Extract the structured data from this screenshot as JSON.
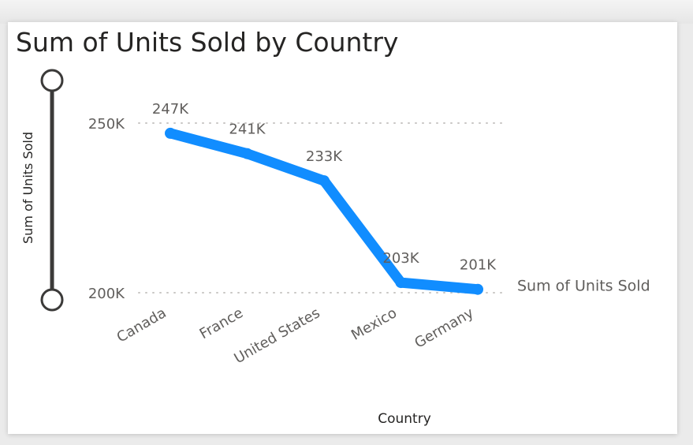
{
  "visual": {
    "title": "Sum of Units Sold by Country"
  },
  "chart_data": {
    "type": "line",
    "title": "Sum of Units Sold by Country",
    "xlabel": "Country",
    "ylabel": "Sum of Units Sold",
    "categories": [
      "Canada",
      "France",
      "United States",
      "Mexico",
      "Germany"
    ],
    "series": [
      {
        "name": "Sum of Units Sold",
        "values": [
          247000,
          241000,
          233000,
          203000,
          201000
        ],
        "labels": [
          "247K",
          "241K",
          "233K",
          "203K",
          "201K"
        ],
        "color": "#118dff"
      }
    ],
    "yticks": [
      {
        "value": 200000,
        "label": "200K"
      },
      {
        "value": 250000,
        "label": "250K"
      }
    ],
    "ylim": [
      200000,
      250000
    ],
    "grid": true,
    "legend": "right",
    "colors": {
      "line": "#118dff",
      "text": "#605e5c",
      "grid": "#c8c6c4",
      "slider": "#3b3a39"
    }
  }
}
